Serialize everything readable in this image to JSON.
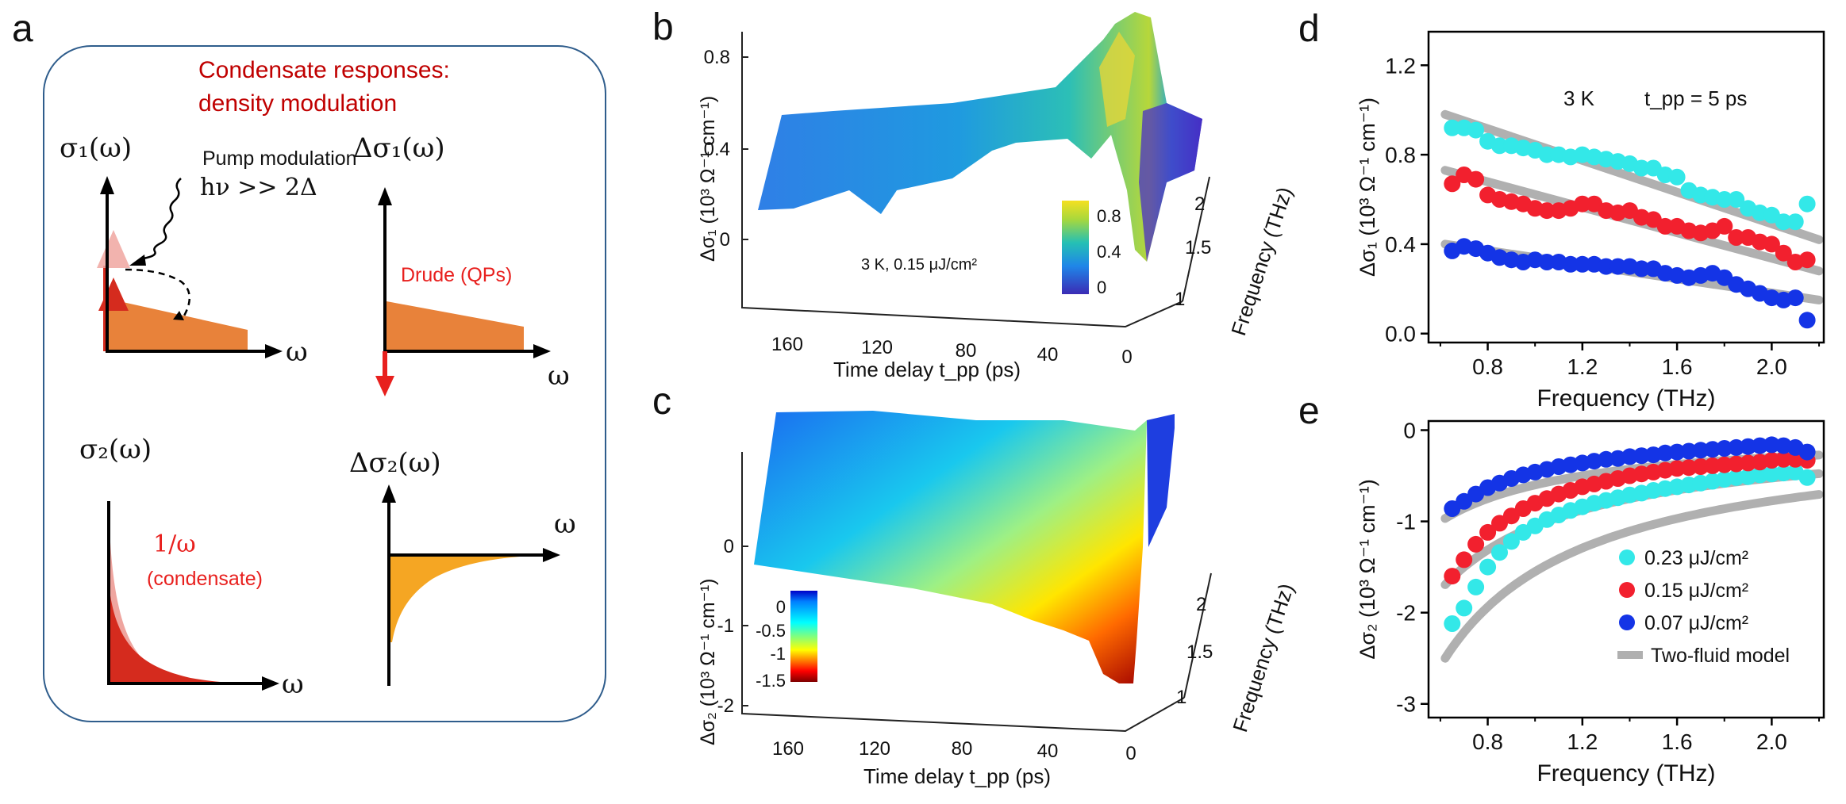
{
  "panel_letters": {
    "a": "a",
    "b": "b",
    "c": "c",
    "d": "d",
    "e": "e"
  },
  "colors": {
    "title_red": "#c00000",
    "label_red": "#e8201e",
    "orange": "#e8823a",
    "bright_orange": "#f5a623",
    "dark_red": "#d52b1e",
    "pink": "#efa59f",
    "cyan": "#33e8e8",
    "red": "#f2202e",
    "blue": "#1434e6",
    "gray_fit": "#b0b0b0",
    "box_border": "#2f5d8c"
  },
  "schematic": {
    "title_line1": "Condensate responses:",
    "title_line2": "density modulation",
    "s1_label": "σ₁(ω)",
    "ds1_label": "Δσ₁(ω)",
    "s2_label": "σ₂(ω)",
    "ds2_label": "Δσ₂(ω)",
    "omega": "ω",
    "pump_line1": "Pump modulation",
    "pump_line2": "hν >> 2Δ",
    "drude_label": "Drude (QPs)",
    "inv_omega": "1/ω",
    "condensate": "(condensate)"
  },
  "panel_b": {
    "zlabel": "Δσ₁ (10³ Ω⁻¹ cm⁻¹)",
    "z_ticks": [
      "0.8",
      "0.4",
      "0"
    ],
    "xlabel": "Time delay t_pp (ps)",
    "x_ticks": [
      "160",
      "120",
      "80",
      "40",
      "0"
    ],
    "ylabel": "Frequency (THz)",
    "y_ticks": [
      "2",
      "1.5",
      "1"
    ],
    "annotation": "3 K, 0.15 μJ/cm²",
    "colorbar_ticks": [
      "0.8",
      "0.4",
      "0"
    ]
  },
  "panel_c": {
    "zlabel": "Δσ₂ (10³ Ω⁻¹ cm⁻¹)",
    "z_ticks": [
      "0",
      "-1",
      "-2"
    ],
    "xlabel": "Time delay t_pp (ps)",
    "x_ticks": [
      "160",
      "120",
      "80",
      "40",
      "0"
    ],
    "ylabel": "Frequency (THz)",
    "y_ticks": [
      "2",
      "1.5",
      "1"
    ],
    "colorbar_ticks": [
      "0",
      "-0.5",
      "-1",
      "-1.5"
    ]
  },
  "chart_data": [
    {
      "id": "d",
      "type": "scatter",
      "title": "",
      "annotation_temp": "3 K",
      "annotation_tpp": "t_pp = 5 ps",
      "xlabel": "Frequency (THz)",
      "ylabel": "Δσ₁ (10³ Ω⁻¹ cm⁻¹)",
      "xlim": [
        0.55,
        2.22
      ],
      "ylim": [
        -0.04,
        1.35
      ],
      "xticks": [
        0.8,
        1.2,
        1.6,
        2.0
      ],
      "yticks": [
        0.0,
        0.4,
        0.8,
        1.2
      ],
      "x": [
        0.65,
        0.7,
        0.75,
        0.8,
        0.85,
        0.9,
        0.95,
        1.0,
        1.05,
        1.1,
        1.15,
        1.2,
        1.25,
        1.3,
        1.35,
        1.4,
        1.45,
        1.5,
        1.55,
        1.6,
        1.65,
        1.7,
        1.75,
        1.8,
        1.85,
        1.9,
        1.95,
        2.0,
        2.05,
        2.1,
        2.15
      ],
      "series": [
        {
          "name": "0.23 μJ/cm²",
          "color": "#33e8e8",
          "values": [
            0.92,
            0.92,
            0.91,
            0.86,
            0.84,
            0.84,
            0.83,
            0.82,
            0.8,
            0.8,
            0.79,
            0.8,
            0.79,
            0.78,
            0.77,
            0.76,
            0.74,
            0.74,
            0.71,
            0.7,
            0.64,
            0.62,
            0.61,
            0.6,
            0.6,
            0.56,
            0.54,
            0.53,
            0.5,
            0.5,
            0.58
          ]
        },
        {
          "name": "0.15 μJ/cm²",
          "color": "#f2202e",
          "values": [
            0.67,
            0.71,
            0.69,
            0.62,
            0.6,
            0.59,
            0.58,
            0.56,
            0.55,
            0.55,
            0.56,
            0.58,
            0.58,
            0.55,
            0.54,
            0.55,
            0.52,
            0.51,
            0.48,
            0.48,
            0.46,
            0.45,
            0.46,
            0.48,
            0.43,
            0.43,
            0.41,
            0.4,
            0.36,
            0.32,
            0.33
          ]
        },
        {
          "name": "0.07 μJ/cm²",
          "color": "#1434e6",
          "values": [
            0.37,
            0.39,
            0.38,
            0.36,
            0.34,
            0.33,
            0.32,
            0.33,
            0.32,
            0.32,
            0.31,
            0.31,
            0.31,
            0.3,
            0.3,
            0.3,
            0.29,
            0.29,
            0.27,
            0.26,
            0.25,
            0.26,
            0.27,
            0.25,
            0.22,
            0.2,
            0.18,
            0.16,
            0.15,
            0.16,
            0.06
          ]
        }
      ],
      "fits": [
        {
          "x": [
            0.62,
            2.2
          ],
          "y": [
            0.98,
            0.42
          ]
        },
        {
          "x": [
            0.62,
            2.2
          ],
          "y": [
            0.73,
            0.28
          ]
        },
        {
          "x": [
            0.62,
            2.2
          ],
          "y": [
            0.4,
            0.15
          ]
        }
      ]
    },
    {
      "id": "e",
      "type": "scatter",
      "title": "",
      "xlabel": "Frequency (THz)",
      "ylabel": "Δσ₂ (10³ Ω⁻¹ cm⁻¹)",
      "xlim": [
        0.55,
        2.22
      ],
      "ylim": [
        -3.15,
        0.1
      ],
      "xticks": [
        0.8,
        1.2,
        1.6,
        2.0
      ],
      "yticks": [
        0,
        -1,
        -2,
        -3
      ],
      "legend_position": "bottom-right",
      "legend_fit": "Two-fluid model",
      "x": [
        0.65,
        0.7,
        0.75,
        0.8,
        0.85,
        0.9,
        0.95,
        1.0,
        1.05,
        1.1,
        1.15,
        1.2,
        1.25,
        1.3,
        1.35,
        1.4,
        1.45,
        1.5,
        1.55,
        1.6,
        1.65,
        1.7,
        1.75,
        1.8,
        1.85,
        1.9,
        1.95,
        2.0,
        2.05,
        2.1,
        2.15
      ],
      "series": [
        {
          "name": "0.23 μJ/cm²",
          "color": "#33e8e8",
          "values": [
            -2.12,
            -1.95,
            -1.72,
            -1.5,
            -1.34,
            -1.22,
            -1.12,
            -1.05,
            -0.98,
            -0.93,
            -0.88,
            -0.84,
            -0.8,
            -0.77,
            -0.74,
            -0.71,
            -0.69,
            -0.66,
            -0.64,
            -0.62,
            -0.6,
            -0.58,
            -0.56,
            -0.54,
            -0.52,
            -0.51,
            -0.49,
            -0.48,
            -0.47,
            -0.46,
            -0.52
          ]
        },
        {
          "name": "0.15 μJ/cm²",
          "color": "#f2202e",
          "values": [
            -1.6,
            -1.42,
            -1.25,
            -1.12,
            -1.02,
            -0.94,
            -0.86,
            -0.8,
            -0.75,
            -0.7,
            -0.66,
            -0.62,
            -0.59,
            -0.56,
            -0.53,
            -0.5,
            -0.48,
            -0.46,
            -0.44,
            -0.42,
            -0.41,
            -0.4,
            -0.39,
            -0.38,
            -0.37,
            -0.36,
            -0.35,
            -0.33,
            -0.32,
            -0.32,
            -0.33
          ]
        },
        {
          "name": "0.07 μJ/cm²",
          "color": "#1434e6",
          "values": [
            -0.86,
            -0.78,
            -0.7,
            -0.63,
            -0.58,
            -0.53,
            -0.49,
            -0.46,
            -0.43,
            -0.4,
            -0.38,
            -0.36,
            -0.34,
            -0.32,
            -0.31,
            -0.29,
            -0.28,
            -0.27,
            -0.25,
            -0.24,
            -0.23,
            -0.22,
            -0.21,
            -0.2,
            -0.19,
            -0.18,
            -0.17,
            -0.16,
            -0.17,
            -0.19,
            -0.24
          ]
        }
      ],
      "fits": [
        {
          "model": "amp/f",
          "amp": -1.55
        },
        {
          "model": "amp/f",
          "amp": -1.05
        },
        {
          "model": "amp/f",
          "amp": -0.6
        }
      ]
    }
  ]
}
